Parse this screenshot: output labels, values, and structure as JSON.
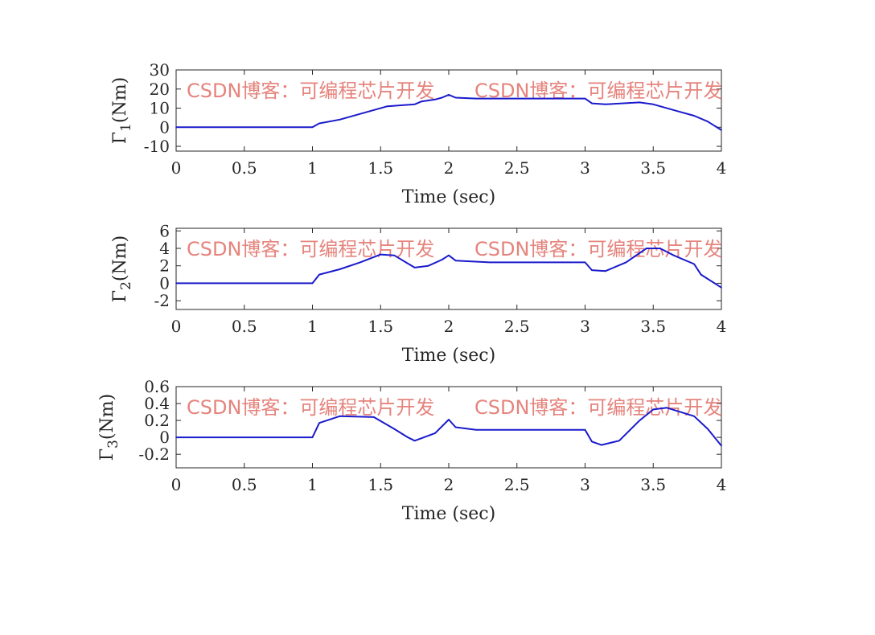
{
  "watermark": "CSDN博客：可编程芯片开发",
  "line_color": "#1a1acc",
  "chart_data": [
    {
      "type": "line",
      "title": "",
      "xlabel": "Time (sec)",
      "ylabel": "Γ",
      "ylabel_sub": "1",
      "ylabel_unit": "(Nm)",
      "xlim": [
        0,
        4
      ],
      "ylim": [
        -12.5,
        30
      ],
      "xticks": [
        0,
        0.5,
        1,
        1.5,
        2,
        2.5,
        3,
        3.5,
        4
      ],
      "xtick_labels": [
        "0",
        "0.5",
        "1",
        "1.5",
        "2",
        "2.5",
        "3",
        "3.5",
        "4"
      ],
      "yticks": [
        -10,
        0,
        10,
        20,
        30
      ],
      "ytick_labels": [
        "-10",
        "0",
        "10",
        "20",
        "30"
      ],
      "x": [
        0,
        1,
        1.05,
        1.2,
        1.4,
        1.55,
        1.75,
        1.8,
        1.9,
        1.95,
        2,
        2.05,
        2.2,
        3,
        3.05,
        3.15,
        3.4,
        3.5,
        3.7,
        3.8,
        3.9,
        4
      ],
      "y": [
        0,
        0,
        2,
        4,
        8,
        11,
        12,
        13.5,
        14.5,
        15.5,
        17,
        15.5,
        15,
        15,
        12.5,
        12,
        13,
        12,
        8,
        6,
        3,
        -1.5
      ]
    },
    {
      "type": "line",
      "title": "",
      "xlabel": "Time (sec)",
      "ylabel": "Γ",
      "ylabel_sub": "2",
      "ylabel_unit": "(Nm)",
      "xlim": [
        0,
        4
      ],
      "ylim": [
        -3,
        6.3
      ],
      "xticks": [
        0,
        0.5,
        1,
        1.5,
        2,
        2.5,
        3,
        3.5,
        4
      ],
      "xtick_labels": [
        "0",
        "0.5",
        "1",
        "1.5",
        "2",
        "2.5",
        "3",
        "3.5",
        "4"
      ],
      "yticks": [
        -2,
        0,
        2,
        4,
        6
      ],
      "ytick_labels": [
        "-2",
        "0",
        "2",
        "4",
        "6"
      ],
      "x": [
        0,
        1,
        1.05,
        1.2,
        1.35,
        1.5,
        1.6,
        1.75,
        1.85,
        1.95,
        2,
        2.05,
        2.3,
        3,
        3.05,
        3.15,
        3.3,
        3.45,
        3.55,
        3.65,
        3.8,
        3.85,
        4
      ],
      "y": [
        0,
        0,
        1,
        1.6,
        2.4,
        3.3,
        3.2,
        1.8,
        2.0,
        2.7,
        3.2,
        2.6,
        2.4,
        2.4,
        1.5,
        1.4,
        2.4,
        4.0,
        4.0,
        3.2,
        2.2,
        1.0,
        -0.5
      ]
    },
    {
      "type": "line",
      "title": "",
      "xlabel": "Time (sec)",
      "ylabel": "Γ",
      "ylabel_sub": "3",
      "ylabel_unit": "(Nm)",
      "xlim": [
        0,
        4
      ],
      "ylim": [
        -0.36,
        0.6
      ],
      "xticks": [
        0,
        0.5,
        1,
        1.5,
        2,
        2.5,
        3,
        3.5,
        4
      ],
      "xtick_labels": [
        "0",
        "0.5",
        "1",
        "1.5",
        "2",
        "2.5",
        "3",
        "3.5",
        "4"
      ],
      "yticks": [
        -0.2,
        0,
        0.2,
        0.4,
        0.6
      ],
      "ytick_labels": [
        "-0.2",
        "0",
        "0.2",
        "0.4",
        "0.6"
      ],
      "x": [
        0,
        1,
        1.05,
        1.2,
        1.45,
        1.6,
        1.7,
        1.75,
        1.8,
        1.9,
        2,
        2.05,
        2.2,
        3,
        3.05,
        3.12,
        3.25,
        3.4,
        3.5,
        3.6,
        3.7,
        3.8,
        3.9,
        4
      ],
      "y": [
        0,
        0,
        0.17,
        0.25,
        0.24,
        0.1,
        0,
        -0.04,
        -0.01,
        0.05,
        0.21,
        0.12,
        0.09,
        0.09,
        -0.05,
        -0.09,
        -0.04,
        0.2,
        0.33,
        0.35,
        0.3,
        0.25,
        0.1,
        -0.1
      ]
    }
  ]
}
